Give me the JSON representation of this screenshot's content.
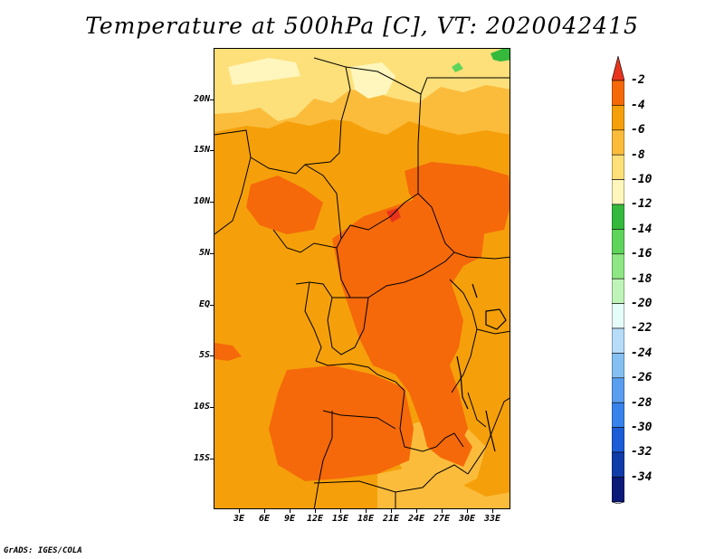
{
  "title": "Temperature at 500hPa [C], VT: 2020042415",
  "credit": "GrADS: IGES/COLA",
  "lat_labels": [
    "20N",
    "15N",
    "10N",
    "5N",
    "EQ",
    "5S",
    "10S",
    "15S"
  ],
  "lon_labels": [
    "3E",
    "6E",
    "9E",
    "12E",
    "15E",
    "18E",
    "21E",
    "24E",
    "27E",
    "30E",
    "33E"
  ],
  "colorbar": {
    "labels": [
      "-2",
      "-4",
      "-6",
      "-8",
      "-10",
      "-12",
      "-14",
      "-16",
      "-18",
      "-20",
      "-22",
      "-24",
      "-26",
      "-28",
      "-30",
      "-32",
      "-34"
    ],
    "colors": [
      "#e8341c",
      "#f5690a",
      "#f5a00a",
      "#fbbc3c",
      "#fde07a",
      "#fef6bc",
      "#35b93c",
      "#5ed45a",
      "#8ee684",
      "#bff4b8",
      "#e6fcf8",
      "#b6dcf8",
      "#86c0f2",
      "#5a9ef0",
      "#3882ec",
      "#1c5cd6",
      "#103ca8",
      "#0a1a78",
      "#e0e0f8"
    ]
  },
  "map": {
    "colors": {
      "background": "#f5a00a",
      "band_8": "#fbbc3c",
      "band_10": "#fde07a",
      "band_12": "#fef6bc",
      "warm_4": "#f5690a",
      "warm_2": "#e8341c",
      "green": "#35b93c",
      "light_green": "#5ed45a",
      "border": "#000000"
    }
  }
}
